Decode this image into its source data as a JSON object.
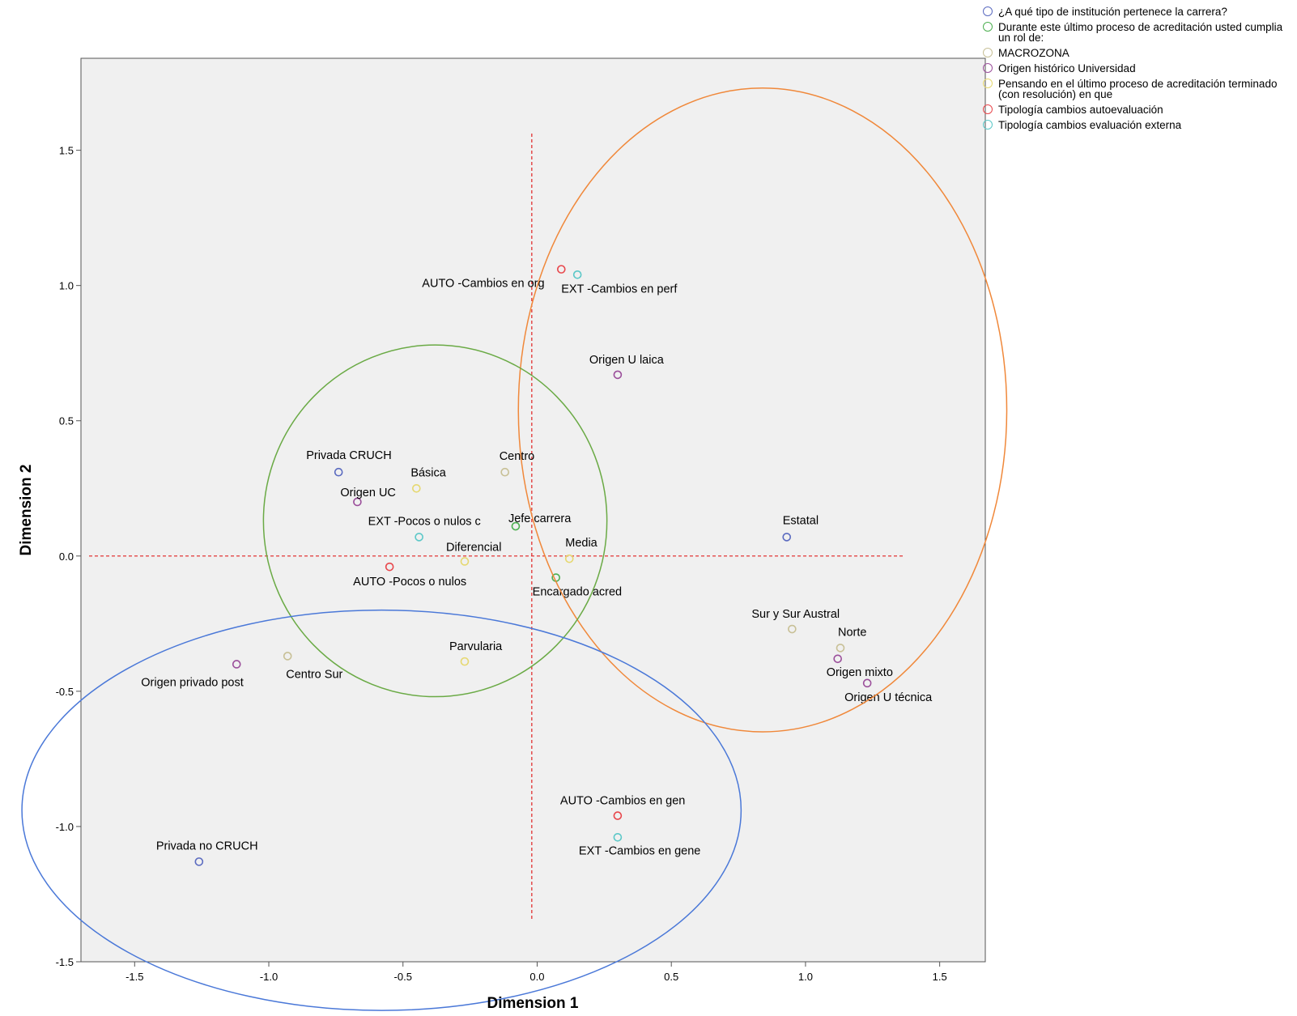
{
  "chart_data": {
    "type": "scatter",
    "title": "",
    "xlabel": "Dimension 1",
    "ylabel": "Dimension 2",
    "xlim": [
      -1.7,
      1.67
    ],
    "ylim": [
      -1.5,
      1.84
    ],
    "x_ticks": [
      -1.5,
      -1.0,
      -0.5,
      0.0,
      0.5,
      1.0,
      1.5
    ],
    "y_ticks": [
      -1.5,
      -1.0,
      -0.5,
      0.0,
      0.5,
      1.0,
      1.5
    ],
    "x_tick_labels": [
      "-1.5",
      "-1.0",
      "-0.5",
      "0.0",
      "0.5",
      "1.0",
      "1.5"
    ],
    "y_tick_labels": [
      "-1.5",
      "-1.0",
      "-0.5",
      "0.0",
      "0.5",
      "1.0",
      "1.5"
    ],
    "grid": false,
    "legend_position": "top-right outside",
    "series": [
      {
        "name": "¿A qué tipo de institución pertenece la carrera?",
        "color": "#5b6bc0",
        "points": [
          {
            "label": "Privada CRUCH",
            "x": -0.74,
            "y": 0.31
          },
          {
            "label": "Estatal",
            "x": 0.93,
            "y": 0.07
          },
          {
            "label": "Privada no CRUCH",
            "x": -1.26,
            "y": -1.13
          }
        ]
      },
      {
        "name": "Durante este último proceso de acreditación usted cumplia un rol de:",
        "color": "#4caf50",
        "points": [
          {
            "label": "Jefe carrera",
            "x": -0.08,
            "y": 0.11
          },
          {
            "label": "Encargado acred",
            "x": 0.07,
            "y": -0.08
          }
        ]
      },
      {
        "name": "MACROZONA",
        "color": "#c8c096",
        "points": [
          {
            "label": "Centro",
            "x": -0.12,
            "y": 0.31
          },
          {
            "label": "Centro Sur",
            "x": -0.93,
            "y": -0.37
          },
          {
            "label": "Sur y Sur Austral",
            "x": 0.95,
            "y": -0.27
          },
          {
            "label": "Norte",
            "x": 1.13,
            "y": -0.34
          }
        ]
      },
      {
        "name": "Origen histórico Universidad",
        "color": "#9b4f9b",
        "points": [
          {
            "label": "Origen U laica",
            "x": 0.3,
            "y": 0.67
          },
          {
            "label": "Origen UC",
            "x": -0.67,
            "y": 0.2
          },
          {
            "label": "Origen privado post",
            "x": -1.12,
            "y": -0.4
          },
          {
            "label": "Origen mixto",
            "x": 1.12,
            "y": -0.38
          },
          {
            "label": "Origen U técnica",
            "x": 1.23,
            "y": -0.47
          }
        ]
      },
      {
        "name": "Pensando en el último proceso de acreditación terminado (con resolución) en que",
        "color": "#e6d870",
        "points": [
          {
            "label": "Básica",
            "x": -0.45,
            "y": 0.25
          },
          {
            "label": "Diferencial",
            "x": -0.27,
            "y": -0.02
          },
          {
            "label": "Media",
            "x": 0.12,
            "y": -0.01
          },
          {
            "label": "Parvularia",
            "x": -0.27,
            "y": -0.39
          }
        ]
      },
      {
        "name": "Tipología cambios autoevaluación",
        "color": "#e8474c",
        "points": [
          {
            "label": "AUTO -Cambios en org",
            "x": 0.09,
            "y": 1.06
          },
          {
            "label": "AUTO -Pocos o nulos",
            "x": -0.55,
            "y": -0.04
          },
          {
            "label": "AUTO -Cambios en gen",
            "x": 0.3,
            "y": -0.96
          }
        ]
      },
      {
        "name": "Tipología cambios evaluación externa",
        "color": "#5cc8c8",
        "points": [
          {
            "label": "EXT -Cambios en perf",
            "x": 0.15,
            "y": 1.04
          },
          {
            "label": "EXT -Pocos o nulos c",
            "x": -0.44,
            "y": 0.07
          },
          {
            "label": "EXT -Cambios en gene",
            "x": 0.3,
            "y": -1.04
          }
        ]
      }
    ],
    "ellipses": [
      {
        "name": "orange",
        "color": "#f0883a",
        "cx": 0.84,
        "cy": 0.54,
        "rx": 0.91,
        "ry": 1.19
      },
      {
        "name": "green",
        "color": "#6aaa45",
        "cx": -0.38,
        "cy": 0.13,
        "rx": 0.64,
        "ry": 0.65
      },
      {
        "name": "blue",
        "color": "#4a78d8",
        "cx": -0.58,
        "cy": -0.94,
        "rx": 1.34,
        "ry": 0.74
      }
    ],
    "reference_lines": {
      "color": "#e02020",
      "horizontal_y": 0.0,
      "vertical_x": -0.02
    }
  }
}
